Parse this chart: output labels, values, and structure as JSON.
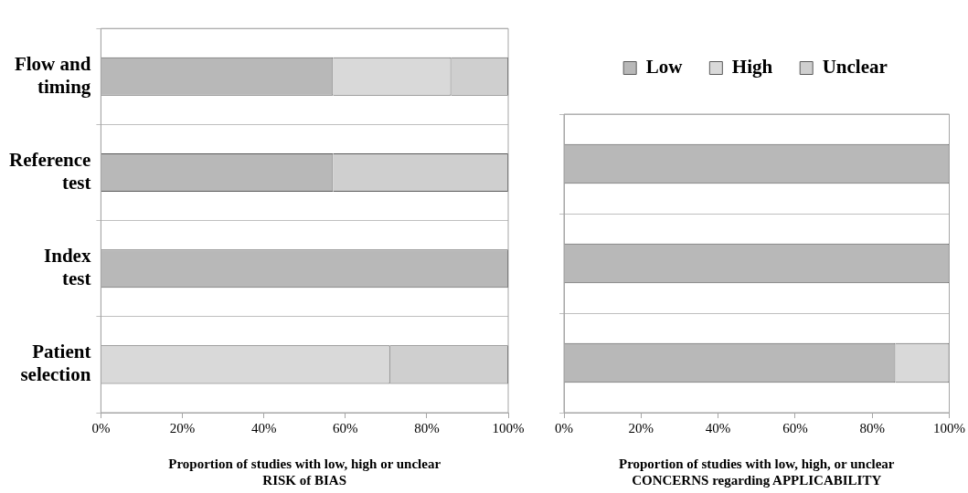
{
  "chart_data": [
    {
      "type": "bar",
      "orientation": "horizontal",
      "stacked": true,
      "xlabel": "Proportion of studies with low, high or unclear\nRISK of BIAS",
      "categories": [
        "Flow and timing",
        "Reference test",
        "Index test",
        "Patient selection"
      ],
      "series": [
        {
          "color": "#b8b8b8",
          "values": [
            57,
            57,
            100,
            0
          ]
        },
        {
          "color": "#d9d9d9",
          "values": [
            29,
            0,
            0,
            71
          ]
        },
        {
          "color": "#cfcfcf",
          "values": [
            14,
            43,
            0,
            29
          ]
        }
      ],
      "xlim": [
        0,
        100
      ],
      "xticks": [
        {
          "value": 0,
          "label": "0%"
        },
        {
          "value": 20,
          "label": "20%"
        },
        {
          "value": 40,
          "label": "40%"
        },
        {
          "value": 60,
          "label": "60%"
        },
        {
          "value": 80,
          "label": "80%"
        },
        {
          "value": 100,
          "label": "100%"
        }
      ],
      "grid": "y",
      "legend": false
    },
    {
      "type": "bar",
      "orientation": "horizontal",
      "stacked": true,
      "xlabel": "Proportion of studies with low, high, or unclear\nCONCERNS regarding APPLICABILITY",
      "categories": [
        null,
        null,
        null
      ],
      "series": [
        {
          "name": "Low",
          "color": "#b8b8b8",
          "values": [
            100,
            100,
            86
          ]
        },
        {
          "name": "High",
          "color": "#d9d9d9",
          "values": [
            0,
            0,
            14
          ]
        },
        {
          "name": "Unclear",
          "color": "#cfcfcf",
          "values": [
            0,
            0,
            0
          ]
        }
      ],
      "xlim": [
        0,
        100
      ],
      "xticks": [
        {
          "value": 0,
          "label": "0%"
        },
        {
          "value": 20,
          "label": "20%"
        },
        {
          "value": 40,
          "label": "40%"
        },
        {
          "value": 60,
          "label": "60%"
        },
        {
          "value": 80,
          "label": "80%"
        },
        {
          "value": 100,
          "label": "100%"
        }
      ],
      "grid": "y",
      "legend": "top",
      "tick_labels": "x"
    }
  ]
}
